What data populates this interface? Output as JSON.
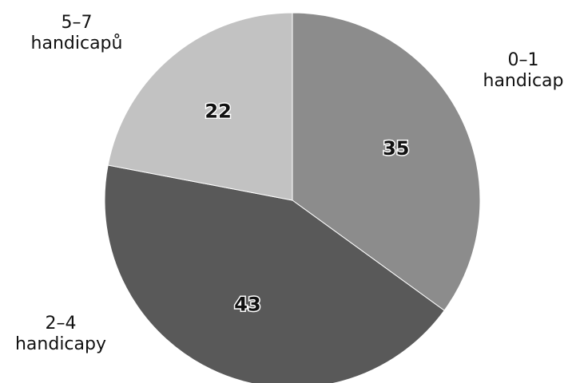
{
  "chart_data": {
    "type": "pie",
    "slices": [
      {
        "label_lines": [
          "0–1",
          "handicap"
        ],
        "value": 35,
        "color": "#8c8c8c"
      },
      {
        "label_lines": [
          "2–4",
          "handicapy"
        ],
        "value": 43,
        "color": "#595959"
      },
      {
        "label_lines": [
          "5–7",
          "handicapů"
        ],
        "value": 22,
        "color": "#c2c2c2"
      }
    ],
    "start": "top",
    "direction": "clockwise",
    "legend": "none"
  }
}
